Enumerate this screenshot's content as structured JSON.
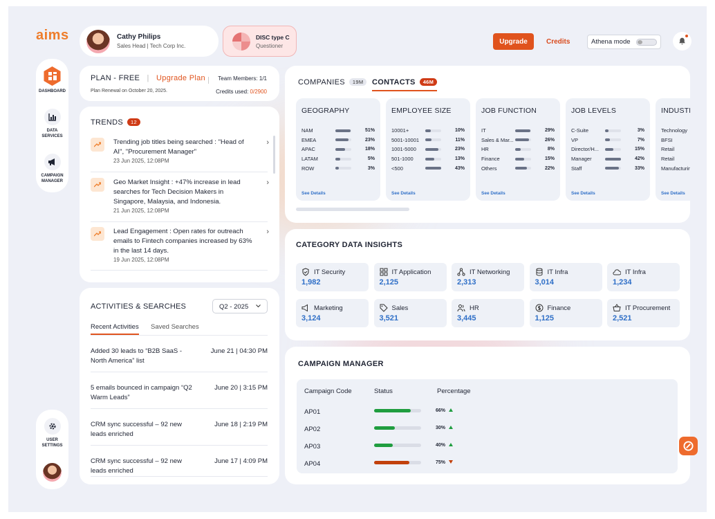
{
  "brand": {
    "logo": "aims"
  },
  "profile": {
    "name": "Cathy Philips",
    "role": "Sales Head | Tech Corp Inc."
  },
  "disc": {
    "title": "DISC type C",
    "subtitle": "Questioner"
  },
  "header": {
    "upgrade": "Upgrade",
    "credits": "Credits",
    "athena": "Athena mode"
  },
  "sidebar": {
    "dashboard": "DASHBOARD",
    "data_services": [
      "DATA",
      "SERVICES"
    ],
    "campaign_manager": [
      "CAMPAIGN",
      "MANAGER"
    ],
    "user_settings": [
      "USER",
      "SETTINGS"
    ]
  },
  "plan": {
    "label": "PLAN - FREE",
    "sep": "|",
    "upgrade": "Upgrade Plan",
    "team": "Team Members: 1/1",
    "renewal": "Plan Renewal on October 20, 2025.",
    "credits_label": "Credits used:",
    "credits_value": "0/2900"
  },
  "trends": {
    "title": "TRENDS",
    "count": "12",
    "items": [
      {
        "text": "Trending job titles being searched : \"Head of AI\", \"Procurement Manager\"",
        "date": "23 Jun 2025, 12:08PM"
      },
      {
        "text": "Geo Market Insight : +47% increase in lead searches for Tech Decision Makers in Singapore, Malaysia, and Indonesia.",
        "date": "21 Jun 2025, 12:08PM"
      },
      {
        "text": "Lead Engagement : Open rates for outreach emails to Fintech companies increased by 63% in the last 14 days.",
        "date": "19 Jun 2025, 12:08PM"
      }
    ]
  },
  "activities": {
    "title": "ACTIVITIES & SEARCHES",
    "quarter": "Q2 - 2025",
    "tab_recent": "Recent Activities",
    "tab_saved": "Saved Searches",
    "items": [
      {
        "text": "Added 30 leads to “B2B SaaS - North America” list",
        "date": "June 21 | 04:30 PM"
      },
      {
        "text": "5 emails bounced in campaign “Q2 Warm Leads”",
        "date": "June 20 | 3:15 PM"
      },
      {
        "text": "CRM sync successful – 92 new leads enriched",
        "date": "June 18 | 2:19 PM"
      },
      {
        "text": "CRM sync successful – 92 new leads enriched",
        "date": "June 17 | 4:09 PM"
      }
    ]
  },
  "tabs": {
    "companies": "COMPANIES",
    "companies_count": "19M",
    "contacts": "CONTACTS",
    "contacts_count": "46M"
  },
  "panels": [
    {
      "title": "GEOGRAPHY",
      "see": "See Details",
      "rows": [
        {
          "l": "NAM",
          "v": "51%",
          "f": 0.95
        },
        {
          "l": "EMEA",
          "v": "23%",
          "f": 0.82
        },
        {
          "l": "APAC",
          "v": "18%",
          "f": 0.6
        },
        {
          "l": "LATAM",
          "v": "5%",
          "f": 0.3
        },
        {
          "l": "ROW",
          "v": "3%",
          "f": 0.2
        }
      ]
    },
    {
      "title": "EMPLOYEE SIZE",
      "see": "See Details",
      "rows": [
        {
          "l": "10001+",
          "v": "10%",
          "f": 0.35
        },
        {
          "l": "5001-10001",
          "v": "11%",
          "f": 0.4
        },
        {
          "l": "1001-5000",
          "v": "23%",
          "f": 0.82
        },
        {
          "l": "501-1000",
          "v": "13%",
          "f": 0.55
        },
        {
          "l": "<500",
          "v": "43%",
          "f": 1
        }
      ]
    },
    {
      "title": "JOB FUNCTION",
      "see": "See Details",
      "rows": [
        {
          "l": "IT",
          "v": "29%",
          "f": 0.95
        },
        {
          "l": "Sales & Mar...",
          "v": "26%",
          "f": 0.85
        },
        {
          "l": "HR",
          "v": "8%",
          "f": 0.35
        },
        {
          "l": "Finance",
          "v": "15%",
          "f": 0.55
        },
        {
          "l": "Others",
          "v": "22%",
          "f": 0.75
        }
      ]
    },
    {
      "title": "JOB LEVELS",
      "see": "See Details",
      "rows": [
        {
          "l": "C-Suite",
          "v": "3%",
          "f": 0.2
        },
        {
          "l": "VP",
          "v": "7%",
          "f": 0.3
        },
        {
          "l": "Director/H...",
          "v": "15%",
          "f": 0.5
        },
        {
          "l": "Manager",
          "v": "42%",
          "f": 1
        },
        {
          "l": "Staff",
          "v": "33%",
          "f": 0.85
        }
      ]
    },
    {
      "title": "INDUSTRY",
      "see": "See Details",
      "rows": [
        {
          "l": "Technology",
          "v": "",
          "f": 0
        },
        {
          "l": "BFSI",
          "v": "",
          "f": 0
        },
        {
          "l": "Retail",
          "v": "",
          "f": 0
        },
        {
          "l": "Retail",
          "v": "",
          "f": 0
        },
        {
          "l": "Manufacturing",
          "v": "",
          "f": 0
        }
      ]
    }
  ],
  "category": {
    "title": "CATEGORY DATA INSIGHTS",
    "items": [
      {
        "name": "IT Security",
        "value": "1,982",
        "icon": "shield-icon"
      },
      {
        "name": "IT Application",
        "value": "2,125",
        "icon": "grid-icon"
      },
      {
        "name": "IT Networking",
        "value": "2,313",
        "icon": "network-icon"
      },
      {
        "name": "IT Infra",
        "value": "3,014",
        "icon": "database-icon"
      },
      {
        "name": "IT Infra",
        "value": "1,234",
        "icon": "cloud-icon"
      },
      {
        "name": "Marketing",
        "value": "3,124",
        "icon": "megaphone-icon"
      },
      {
        "name": "Sales",
        "value": "3,521",
        "icon": "tag-icon"
      },
      {
        "name": "HR",
        "value": "3,445",
        "icon": "users-icon"
      },
      {
        "name": "Finance",
        "value": "1,125",
        "icon": "dollar-icon"
      },
      {
        "name": "IT Procurement",
        "value": "2,521",
        "icon": "basket-icon"
      }
    ]
  },
  "campaign": {
    "title": "CAMPAIGN MANAGER",
    "col_code": "Campaign Code",
    "col_status": "Status",
    "col_pct": "Percentage",
    "rows": [
      {
        "code": "AP01",
        "pct": "66%",
        "value": 0.78,
        "color": "#1f9d3f",
        "trend": "up"
      },
      {
        "code": "AP02",
        "pct": "30%",
        "value": 0.44,
        "color": "#1f9d3f",
        "trend": "up"
      },
      {
        "code": "AP03",
        "pct": "40%",
        "value": 0.4,
        "color": "#1f9d3f",
        "trend": "up"
      },
      {
        "code": "AP04",
        "pct": "75%",
        "value": 0.75,
        "color": "#c2410c",
        "trend": "down"
      }
    ]
  },
  "colors": {
    "accent": "#e0531d",
    "link": "#2f6fc7",
    "up": "#1f9d3f",
    "down": "#c2410c"
  }
}
